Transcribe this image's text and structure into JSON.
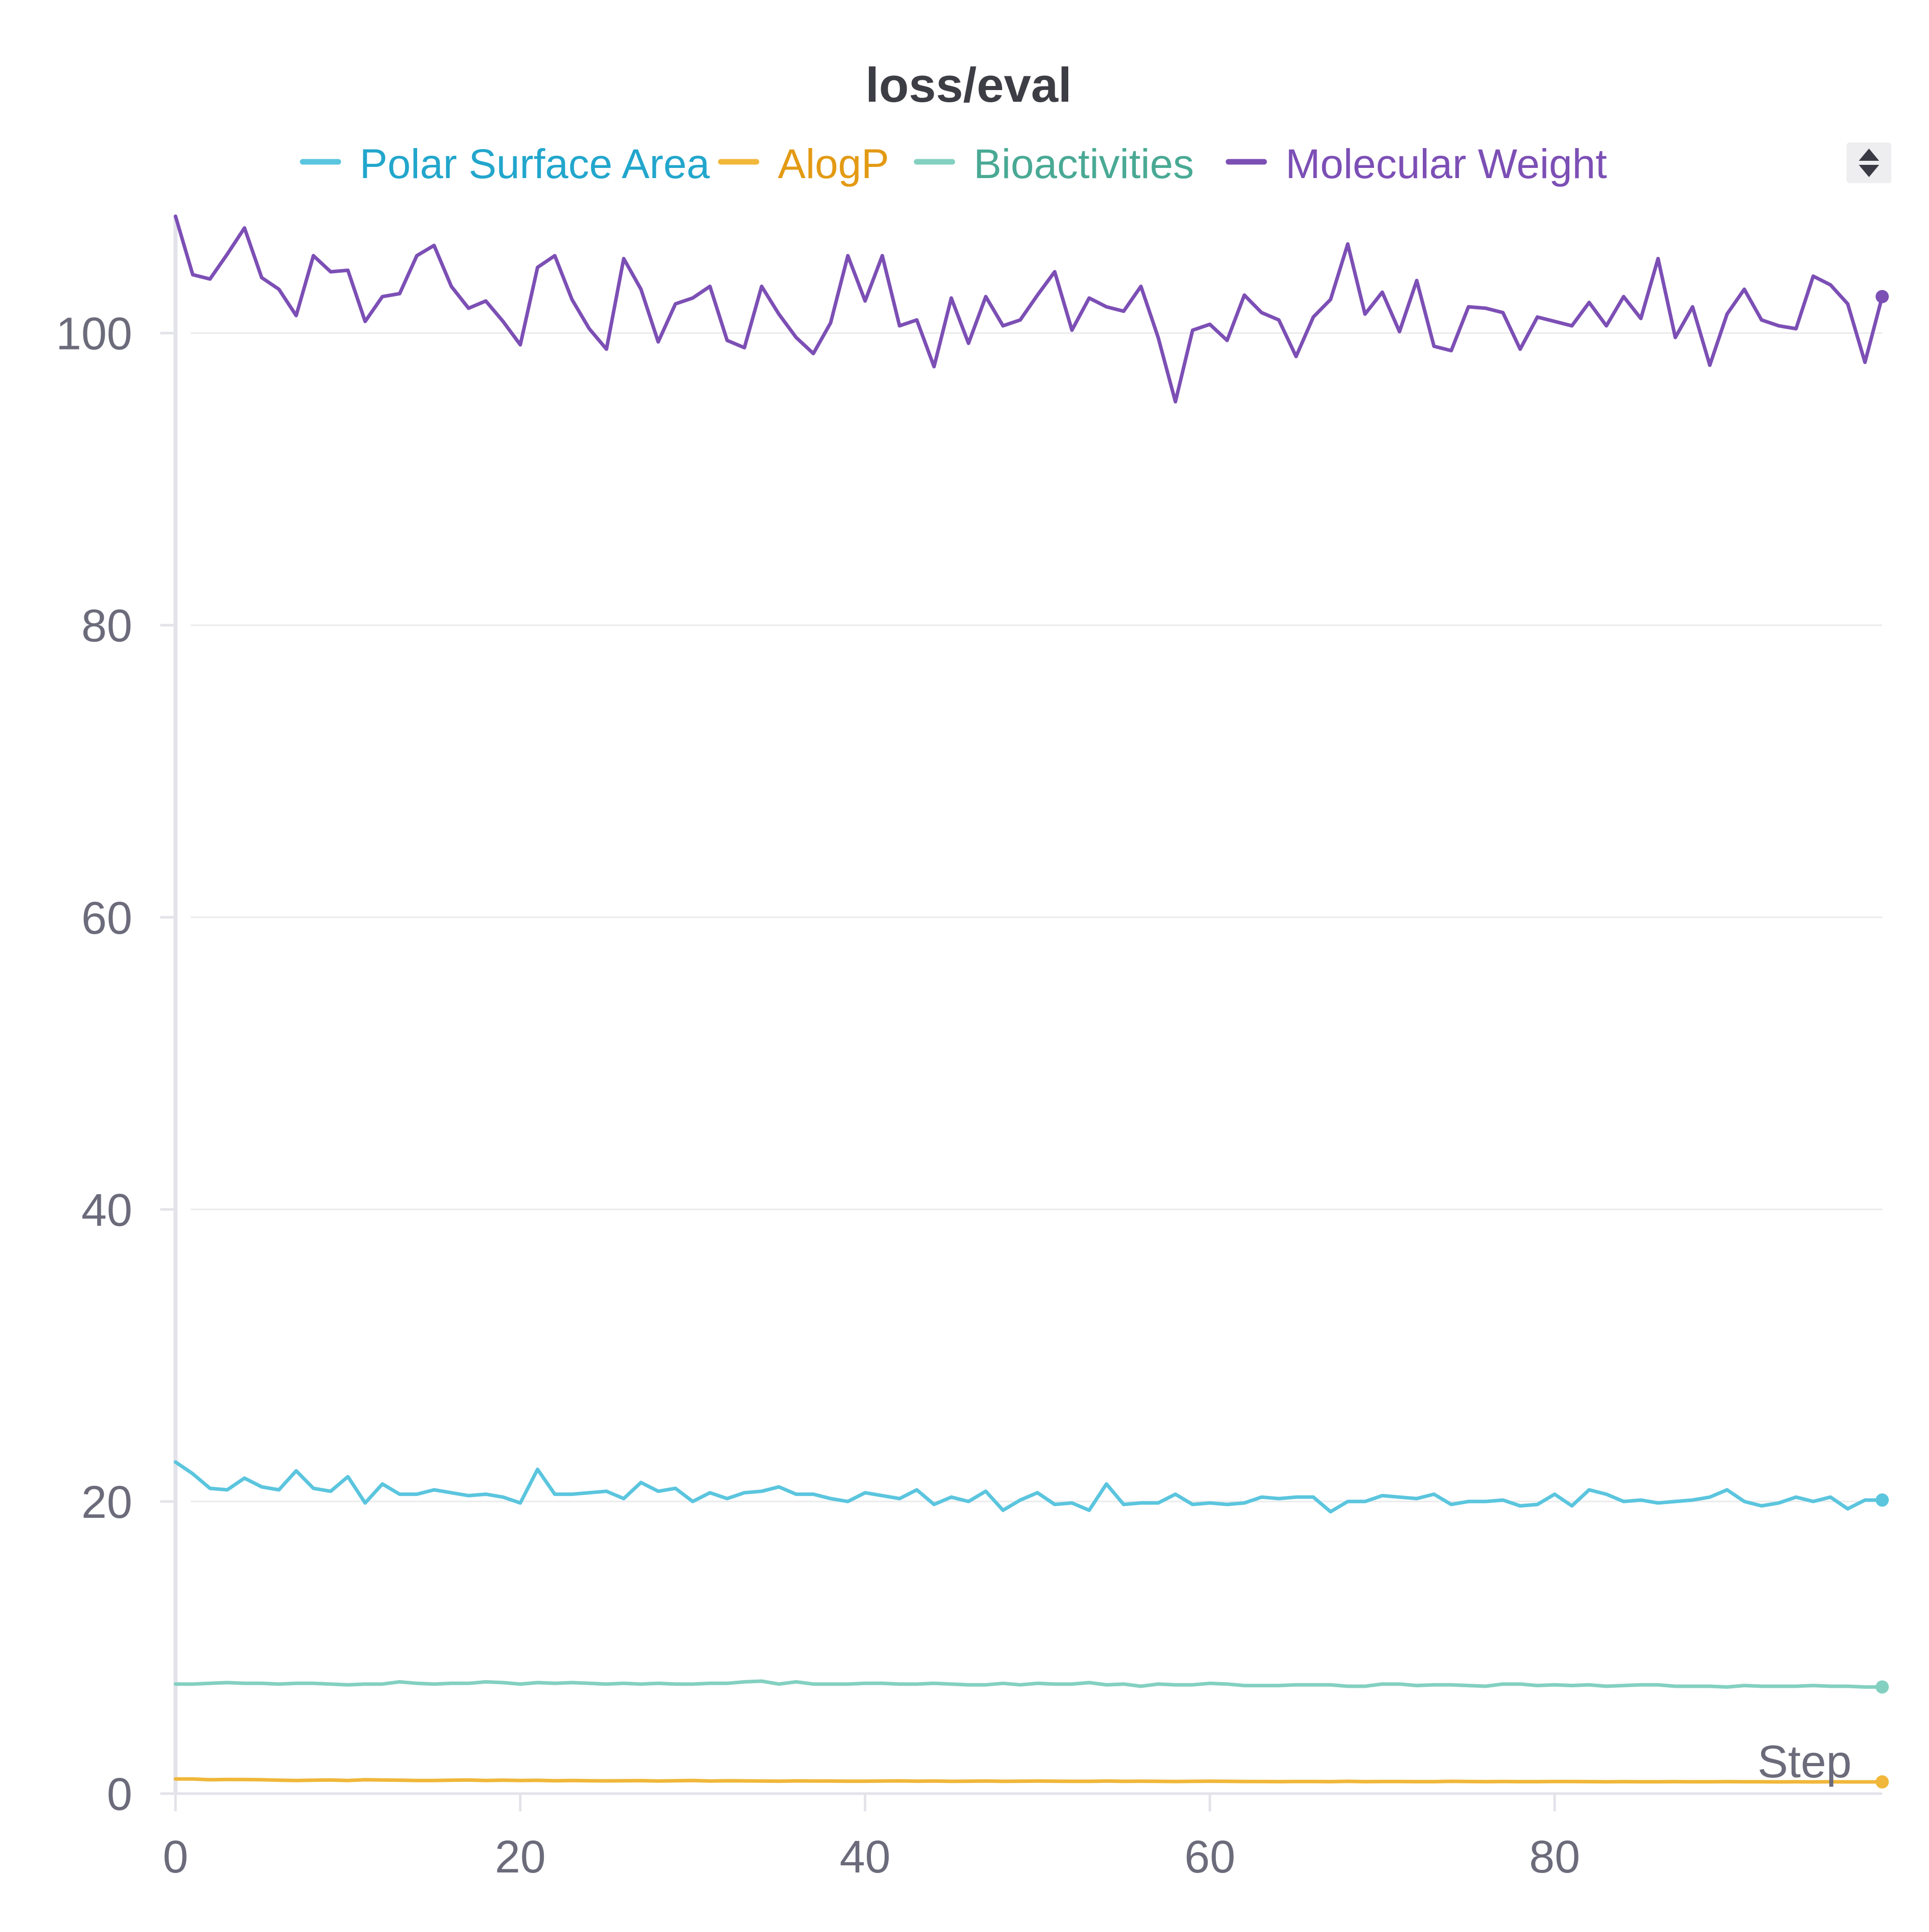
{
  "chart_data": {
    "type": "line",
    "title": "loss/eval",
    "xlabel": "Step",
    "ylabel": "",
    "xlim": [
      0,
      99
    ],
    "ylim": [
      0,
      108
    ],
    "x_ticks": [
      "0",
      "20",
      "40",
      "60",
      "80"
    ],
    "y_ticks": [
      "0",
      "20",
      "40",
      "60",
      "80",
      "100"
    ],
    "grid": true,
    "legend_position": "top-center",
    "colors": {
      "text": "#555555",
      "axis": "#e3e3ea",
      "grid": "#ebebeb",
      "tick_label": "#6b6b7b"
    },
    "series": [
      {
        "name": "Polar Surface Area",
        "color": "#5bc5de",
        "label_color": "#22a6cc",
        "values": [
          22.7,
          21.9,
          20.9,
          20.8,
          21.6,
          21.0,
          20.8,
          22.1,
          20.9,
          20.7,
          21.7,
          19.9,
          21.2,
          20.5,
          20.5,
          20.8,
          20.6,
          20.4,
          20.5,
          20.3,
          19.9,
          22.2,
          20.5,
          20.5,
          20.6,
          20.7,
          20.2,
          21.3,
          20.7,
          20.9,
          20.0,
          20.6,
          20.2,
          20.6,
          20.7,
          21.0,
          20.5,
          20.5,
          20.2,
          20.0,
          20.6,
          20.4,
          20.2,
          20.8,
          19.8,
          20.3,
          20.0,
          20.7,
          19.4,
          20.1,
          20.6,
          19.8,
          19.9,
          19.4,
          21.2,
          19.8,
          19.9,
          19.9,
          20.5,
          19.8,
          19.9,
          19.8,
          19.9,
          20.3,
          20.2,
          20.3,
          20.3,
          19.3,
          20.0,
          20.0,
          20.4,
          20.3,
          20.2,
          20.5,
          19.8,
          20.0,
          20.0,
          20.1,
          19.7,
          19.8,
          20.5,
          19.7,
          20.8,
          20.5,
          20.0,
          20.1,
          19.9,
          20.0,
          20.1,
          20.3,
          20.8,
          20.0,
          19.7,
          19.9,
          20.3,
          20.0,
          20.3,
          19.5,
          20.1,
          20.1
        ]
      },
      {
        "name": "AlogP",
        "color": "#f0b73a",
        "label_color": "#e39a13",
        "values": [
          1.0,
          1.0,
          0.95,
          0.97,
          0.96,
          0.95,
          0.92,
          0.9,
          0.92,
          0.93,
          0.9,
          0.95,
          0.93,
          0.92,
          0.9,
          0.9,
          0.92,
          0.93,
          0.9,
          0.92,
          0.9,
          0.91,
          0.88,
          0.9,
          0.88,
          0.87,
          0.88,
          0.89,
          0.86,
          0.88,
          0.9,
          0.86,
          0.88,
          0.87,
          0.86,
          0.85,
          0.87,
          0.86,
          0.86,
          0.85,
          0.85,
          0.86,
          0.87,
          0.85,
          0.86,
          0.84,
          0.85,
          0.86,
          0.84,
          0.85,
          0.86,
          0.85,
          0.84,
          0.84,
          0.86,
          0.84,
          0.85,
          0.84,
          0.83,
          0.84,
          0.85,
          0.84,
          0.83,
          0.83,
          0.82,
          0.83,
          0.83,
          0.82,
          0.84,
          0.82,
          0.83,
          0.83,
          0.82,
          0.82,
          0.84,
          0.83,
          0.82,
          0.83,
          0.82,
          0.82,
          0.83,
          0.83,
          0.82,
          0.81,
          0.82,
          0.81,
          0.81,
          0.82,
          0.81,
          0.81,
          0.82,
          0.81,
          0.81,
          0.8,
          0.81,
          0.8,
          0.81,
          0.8,
          0.8,
          0.8
        ]
      },
      {
        "name": "Bioactivities",
        "color": "#83d0c1",
        "label_color": "#49a994",
        "values": [
          7.5,
          7.5,
          7.55,
          7.6,
          7.55,
          7.55,
          7.5,
          7.55,
          7.55,
          7.5,
          7.45,
          7.5,
          7.5,
          7.65,
          7.55,
          7.5,
          7.55,
          7.55,
          7.65,
          7.6,
          7.5,
          7.6,
          7.55,
          7.6,
          7.55,
          7.5,
          7.55,
          7.5,
          7.55,
          7.5,
          7.5,
          7.55,
          7.55,
          7.65,
          7.7,
          7.5,
          7.65,
          7.5,
          7.5,
          7.5,
          7.55,
          7.55,
          7.5,
          7.5,
          7.55,
          7.5,
          7.45,
          7.45,
          7.55,
          7.45,
          7.55,
          7.5,
          7.5,
          7.6,
          7.45,
          7.5,
          7.35,
          7.5,
          7.45,
          7.45,
          7.55,
          7.5,
          7.4,
          7.4,
          7.4,
          7.45,
          7.45,
          7.45,
          7.35,
          7.35,
          7.5,
          7.5,
          7.4,
          7.45,
          7.45,
          7.4,
          7.35,
          7.5,
          7.5,
          7.4,
          7.45,
          7.4,
          7.45,
          7.35,
          7.4,
          7.45,
          7.45,
          7.35,
          7.35,
          7.35,
          7.3,
          7.4,
          7.35,
          7.35,
          7.35,
          7.4,
          7.35,
          7.35,
          7.3,
          7.3
        ]
      },
      {
        "name": "Molecular Weight",
        "color": "#7c4fb5",
        "label_color": "#7c4fb5",
        "values": [
          108,
          104,
          103.7,
          105.4,
          107.2,
          103.8,
          103,
          101.2,
          105.3,
          104.2,
          104.3,
          100.8,
          102.5,
          102.7,
          105.3,
          106,
          103.2,
          101.7,
          102.2,
          100.8,
          99.2,
          104.5,
          105.3,
          102.3,
          100.3,
          98.9,
          105.1,
          103,
          99.4,
          102,
          102.4,
          103.2,
          99.5,
          99,
          103.2,
          101.3,
          99.7,
          98.6,
          100.7,
          105.3,
          102.2,
          105.3,
          100.5,
          100.9,
          97.7,
          102.4,
          99.3,
          102.5,
          100.5,
          100.9,
          102.6,
          104.2,
          100.2,
          102.4,
          101.8,
          101.5,
          103.2,
          99.7,
          95.3,
          100.2,
          100.6,
          99.5,
          102.6,
          101.4,
          100.9,
          98.4,
          101.1,
          102.3,
          106.1,
          101.3,
          102.8,
          100.1,
          103.6,
          99.1,
          98.8,
          101.8,
          101.7,
          101.4,
          98.9,
          101.1,
          100.8,
          100.5,
          102.1,
          100.5,
          102.5,
          101,
          105.1,
          99.7,
          101.8,
          97.8,
          101.3,
          103,
          100.9,
          100.5,
          100.3,
          103.9,
          103.3,
          102,
          98,
          102.5
        ]
      }
    ]
  },
  "controls": {
    "sort_icon": "up-down-caret-icon"
  }
}
